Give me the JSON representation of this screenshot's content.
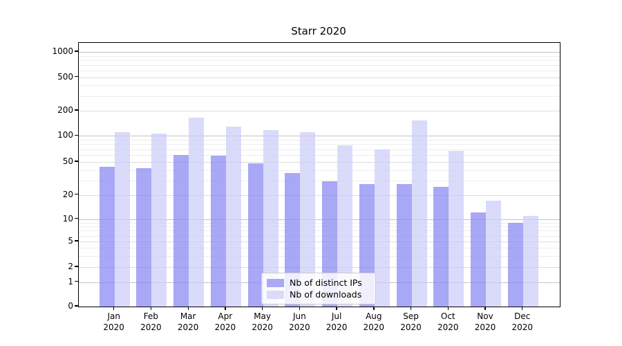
{
  "chart_data": {
    "type": "bar",
    "title": "Starr 2020",
    "x_months": [
      "Jan",
      "Feb",
      "Mar",
      "Apr",
      "May",
      "Jun",
      "Jul",
      "Aug",
      "Sep",
      "Oct",
      "Nov",
      "Dec"
    ],
    "x_year": "2020",
    "series": [
      {
        "name": "Nb of distinct IPs",
        "color": "#a9a9f4",
        "fill": "rgba(134,134,242,0.72)",
        "values": [
          44,
          42,
          60,
          59,
          48,
          37,
          29,
          27,
          27,
          25,
          12,
          9
        ]
      },
      {
        "name": "Nb of downloads",
        "color": "#dadaf9",
        "fill": "rgba(204,204,248,0.72)",
        "values": [
          110,
          106,
          165,
          129,
          117,
          111,
          78,
          70,
          154,
          67,
          17,
          11
        ]
      }
    ],
    "yticks": [
      1000,
      500,
      200,
      100,
      50,
      20,
      10,
      5,
      2,
      1,
      0
    ],
    "yscale": "symlog",
    "ylim": [
      0,
      1400
    ],
    "grid": true,
    "legend_position": "lower-center-inside"
  }
}
